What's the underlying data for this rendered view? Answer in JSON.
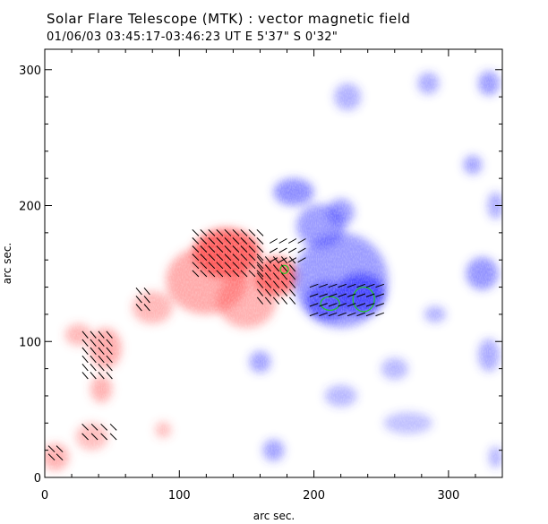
{
  "header": {
    "title": "Solar Flare Telescope (MTK) : vector magnetic field",
    "subtitle": "01/06/03   03:45:17-03:46:23 UT     E 5'37\"   S 0'32\""
  },
  "chart_data": {
    "type": "heatmap",
    "title": "Solar Flare Telescope (MTK) : vector magnetic field",
    "subtitle": "01/06/03   03:45:17-03:46:23 UT     E 5'37\"   S 0'32\"",
    "xlabel": "arc sec.",
    "ylabel": "arc sec.",
    "xlim": [
      0,
      340
    ],
    "ylim": [
      0,
      315
    ],
    "xticks": [
      0,
      100,
      200,
      300
    ],
    "yticks": [
      0,
      100,
      200,
      300
    ],
    "colors": {
      "positive_polarity": "#ff5050",
      "negative_polarity": "#4040ff",
      "contour": "#22cc22",
      "vectors": "#000000",
      "background": "#ffffff"
    },
    "positive_regions": [
      {
        "x": 135,
        "y": 165,
        "rx": 25,
        "ry": 18,
        "intensity": 1.0
      },
      {
        "x": 172,
        "y": 148,
        "rx": 16,
        "ry": 14,
        "intensity": 0.95
      },
      {
        "x": 120,
        "y": 145,
        "rx": 30,
        "ry": 25,
        "intensity": 0.45
      },
      {
        "x": 150,
        "y": 130,
        "rx": 22,
        "ry": 20,
        "intensity": 0.4
      },
      {
        "x": 80,
        "y": 125,
        "rx": 15,
        "ry": 12,
        "intensity": 0.35
      },
      {
        "x": 45,
        "y": 95,
        "rx": 12,
        "ry": 15,
        "intensity": 0.45
      },
      {
        "x": 25,
        "y": 105,
        "rx": 10,
        "ry": 8,
        "intensity": 0.35
      },
      {
        "x": 42,
        "y": 65,
        "rx": 8,
        "ry": 10,
        "intensity": 0.4
      },
      {
        "x": 35,
        "y": 30,
        "rx": 12,
        "ry": 10,
        "intensity": 0.3
      },
      {
        "x": 8,
        "y": 15,
        "rx": 10,
        "ry": 10,
        "intensity": 0.4
      },
      {
        "x": 88,
        "y": 35,
        "rx": 6,
        "ry": 6,
        "intensity": 0.3
      }
    ],
    "negative_regions": [
      {
        "x": 235,
        "y": 135,
        "rx": 18,
        "ry": 15,
        "intensity": 1.0
      },
      {
        "x": 210,
        "y": 130,
        "rx": 16,
        "ry": 14,
        "intensity": 0.8
      },
      {
        "x": 220,
        "y": 145,
        "rx": 35,
        "ry": 35,
        "intensity": 0.5
      },
      {
        "x": 185,
        "y": 210,
        "rx": 15,
        "ry": 10,
        "intensity": 0.6
      },
      {
        "x": 205,
        "y": 185,
        "rx": 18,
        "ry": 16,
        "intensity": 0.5
      },
      {
        "x": 220,
        "y": 195,
        "rx": 10,
        "ry": 10,
        "intensity": 0.5
      },
      {
        "x": 225,
        "y": 280,
        "rx": 10,
        "ry": 10,
        "intensity": 0.35
      },
      {
        "x": 285,
        "y": 290,
        "rx": 8,
        "ry": 8,
        "intensity": 0.4
      },
      {
        "x": 330,
        "y": 290,
        "rx": 8,
        "ry": 9,
        "intensity": 0.5
      },
      {
        "x": 318,
        "y": 230,
        "rx": 7,
        "ry": 7,
        "intensity": 0.45
      },
      {
        "x": 335,
        "y": 200,
        "rx": 6,
        "ry": 10,
        "intensity": 0.4
      },
      {
        "x": 325,
        "y": 150,
        "rx": 12,
        "ry": 12,
        "intensity": 0.55
      },
      {
        "x": 330,
        "y": 90,
        "rx": 8,
        "ry": 12,
        "intensity": 0.4
      },
      {
        "x": 290,
        "y": 120,
        "rx": 8,
        "ry": 6,
        "intensity": 0.35
      },
      {
        "x": 160,
        "y": 85,
        "rx": 8,
        "ry": 8,
        "intensity": 0.45
      },
      {
        "x": 260,
        "y": 80,
        "rx": 10,
        "ry": 8,
        "intensity": 0.3
      },
      {
        "x": 170,
        "y": 20,
        "rx": 8,
        "ry": 8,
        "intensity": 0.45
      },
      {
        "x": 270,
        "y": 40,
        "rx": 18,
        "ry": 8,
        "intensity": 0.25
      },
      {
        "x": 220,
        "y": 60,
        "rx": 12,
        "ry": 8,
        "intensity": 0.3
      },
      {
        "x": 335,
        "y": 15,
        "rx": 5,
        "ry": 8,
        "intensity": 0.35
      }
    ],
    "contours": [
      {
        "x": 178,
        "y": 153,
        "rx": 3,
        "ry": 3
      },
      {
        "x": 212,
        "y": 128,
        "rx": 7,
        "ry": 5
      },
      {
        "x": 237,
        "y": 131,
        "rx": 8,
        "ry": 9
      }
    ],
    "vector_fields": [
      {
        "x0": 112,
        "x1": 160,
        "y0": 150,
        "y1": 182,
        "step": 6,
        "angle": -45
      },
      {
        "x0": 160,
        "x1": 185,
        "y0": 130,
        "y1": 160,
        "step": 6,
        "angle": -50
      },
      {
        "x0": 170,
        "x1": 195,
        "y0": 160,
        "y1": 175,
        "step": 7,
        "angle": 30
      },
      {
        "x0": 200,
        "x1": 250,
        "y0": 120,
        "y1": 145,
        "step": 7,
        "angle": 20
      },
      {
        "x0": 30,
        "x1": 50,
        "y0": 75,
        "y1": 105,
        "step": 6,
        "angle": -50
      },
      {
        "x0": 30,
        "x1": 55,
        "y0": 30,
        "y1": 40,
        "step": 7,
        "angle": -45
      },
      {
        "x0": 70,
        "x1": 80,
        "y0": 125,
        "y1": 140,
        "step": 6,
        "angle": -50
      },
      {
        "x0": 5,
        "x1": 15,
        "y0": 15,
        "y1": 25,
        "step": 6,
        "angle": -45
      }
    ]
  }
}
